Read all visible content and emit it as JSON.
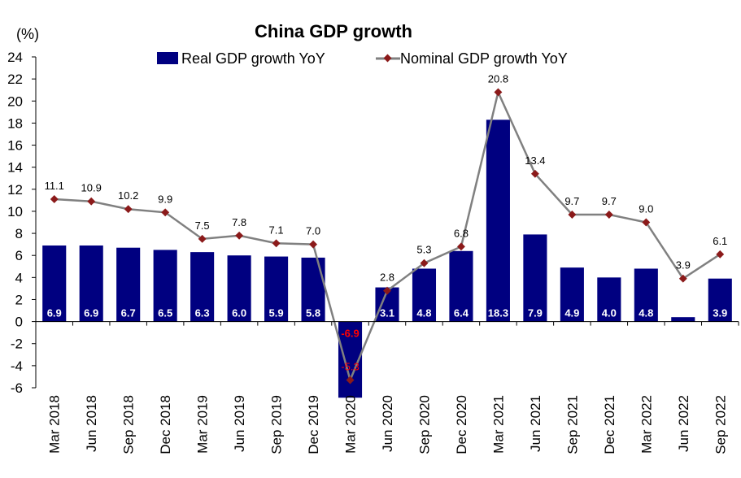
{
  "chart_data": {
    "type": "bar+line",
    "title": "China GDP growth",
    "unit_label": "(%)",
    "categories": [
      "Mar 2018",
      "Jun 2018",
      "Sep 2018",
      "Dec 2018",
      "Mar 2019",
      "Jun 2019",
      "Sep 2019",
      "Dec 2019",
      "Mar 2020",
      "Jun 2020",
      "Sep 2020",
      "Dec 2020",
      "Mar 2021",
      "Jun 2021",
      "Sep 2021",
      "Dec 2021",
      "Mar 2022",
      "Jun 2022",
      "Sep 2022"
    ],
    "ylim": [
      -6,
      24
    ],
    "yticks": [
      -6,
      -4,
      -2,
      0,
      2,
      4,
      6,
      8,
      10,
      12,
      14,
      16,
      18,
      20,
      22,
      24
    ],
    "legend_position": "top-center",
    "series": [
      {
        "name": "Real GDP growth YoY",
        "kind": "bar",
        "color": "#000080",
        "values": [
          6.9,
          6.9,
          6.7,
          6.5,
          6.3,
          6.0,
          5.9,
          5.8,
          -6.9,
          3.1,
          4.8,
          6.4,
          18.3,
          7.9,
          4.9,
          4.0,
          4.8,
          0.4,
          3.9
        ],
        "labels": [
          "6.9",
          "6.9",
          "6.7",
          "6.5",
          "6.3",
          "6.0",
          "5.9",
          "5.8",
          "-6.9",
          "3.1",
          "4.8",
          "6.4",
          "18.3",
          "7.9",
          "4.9",
          "4.0",
          "4.8",
          "",
          "3.9"
        ]
      },
      {
        "name": "Nominal GDP growth YoY",
        "kind": "line",
        "color": "#808080",
        "marker_color": "#8b1a1a",
        "values": [
          11.1,
          10.9,
          10.2,
          9.9,
          7.5,
          7.8,
          7.1,
          7.0,
          -5.3,
          2.8,
          5.3,
          6.8,
          20.8,
          13.4,
          9.7,
          9.7,
          9.0,
          3.9,
          6.1
        ],
        "labels": [
          "11.1",
          "10.9",
          "10.2",
          "9.9",
          "7.5",
          "7.8",
          "7.1",
          "7.0",
          "-5.3",
          "2.8",
          "5.3",
          "6.8",
          "20.8",
          "13.4",
          "9.7",
          "9.7",
          "9.0",
          "3.9",
          "6.1"
        ]
      }
    ],
    "negative_label_color": "#ff0000"
  }
}
